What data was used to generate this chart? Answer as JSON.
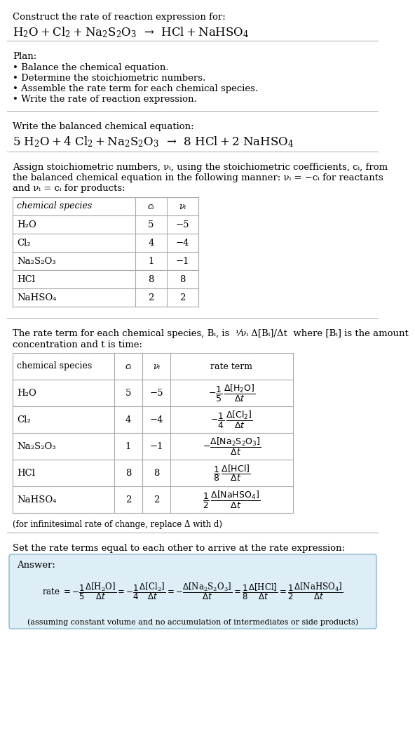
{
  "title_line1": "Construct the rate of reaction expression for:",
  "plan_header": "Plan:",
  "plan_items": [
    "• Balance the chemical equation.",
    "• Determine the stoichiometric numbers.",
    "• Assemble the rate term for each chemical species.",
    "• Write the rate of reaction expression."
  ],
  "balanced_header": "Write the balanced chemical equation:",
  "stoich_intro_lines": [
    "Assign stoichiometric numbers, νᵢ, using the stoichiometric coefficients, cᵢ, from",
    "the balanced chemical equation in the following manner: νᵢ = −cᵢ for reactants",
    "and νᵢ = cᵢ for products:"
  ],
  "table1_headers": [
    "chemical species",
    "cᵢ",
    "νᵢ"
  ],
  "table1_data": [
    [
      "H₂O",
      "5",
      "−5"
    ],
    [
      "Cl₂",
      "4",
      "−4"
    ],
    [
      "Na₂S₂O₃",
      "1",
      "−1"
    ],
    [
      "HCl",
      "8",
      "8"
    ],
    [
      "NaHSO₄",
      "2",
      "2"
    ]
  ],
  "rate_intro_line1": "The rate term for each chemical species, Bᵢ, is  ¹⁄νᵢ Δ[Bᵢ]/Δt  where [Bᵢ] is the amount",
  "rate_intro_line2": "concentration and t is time:",
  "table2_headers": [
    "chemical species",
    "cᵢ",
    "νᵢ",
    "rate term"
  ],
  "table2_species": [
    "H₂O",
    "Cl₂",
    "Na₂S₂O₃",
    "HCl",
    "NaHSO₄"
  ],
  "table2_ci": [
    "5",
    "4",
    "1",
    "8",
    "2"
  ],
  "table2_nu": [
    "−5",
    "−4",
    "−1",
    "8",
    "2"
  ],
  "infinitesimal_note": "(for infinitesimal rate of change, replace Δ with d)",
  "set_equal_text": "Set the rate terms equal to each other to arrive at the rate expression:",
  "answer_label": "Answer:",
  "assume_note": "(assuming constant volume and no accumulation of intermediates or side products)",
  "answer_box_color": "#ddeef6",
  "answer_border_color": "#88bbcc",
  "bg_color": "#ffffff",
  "text_color": "#000000",
  "sep_color": "#aaaaaa",
  "font_size": 9.5,
  "small_font_size": 8.5
}
